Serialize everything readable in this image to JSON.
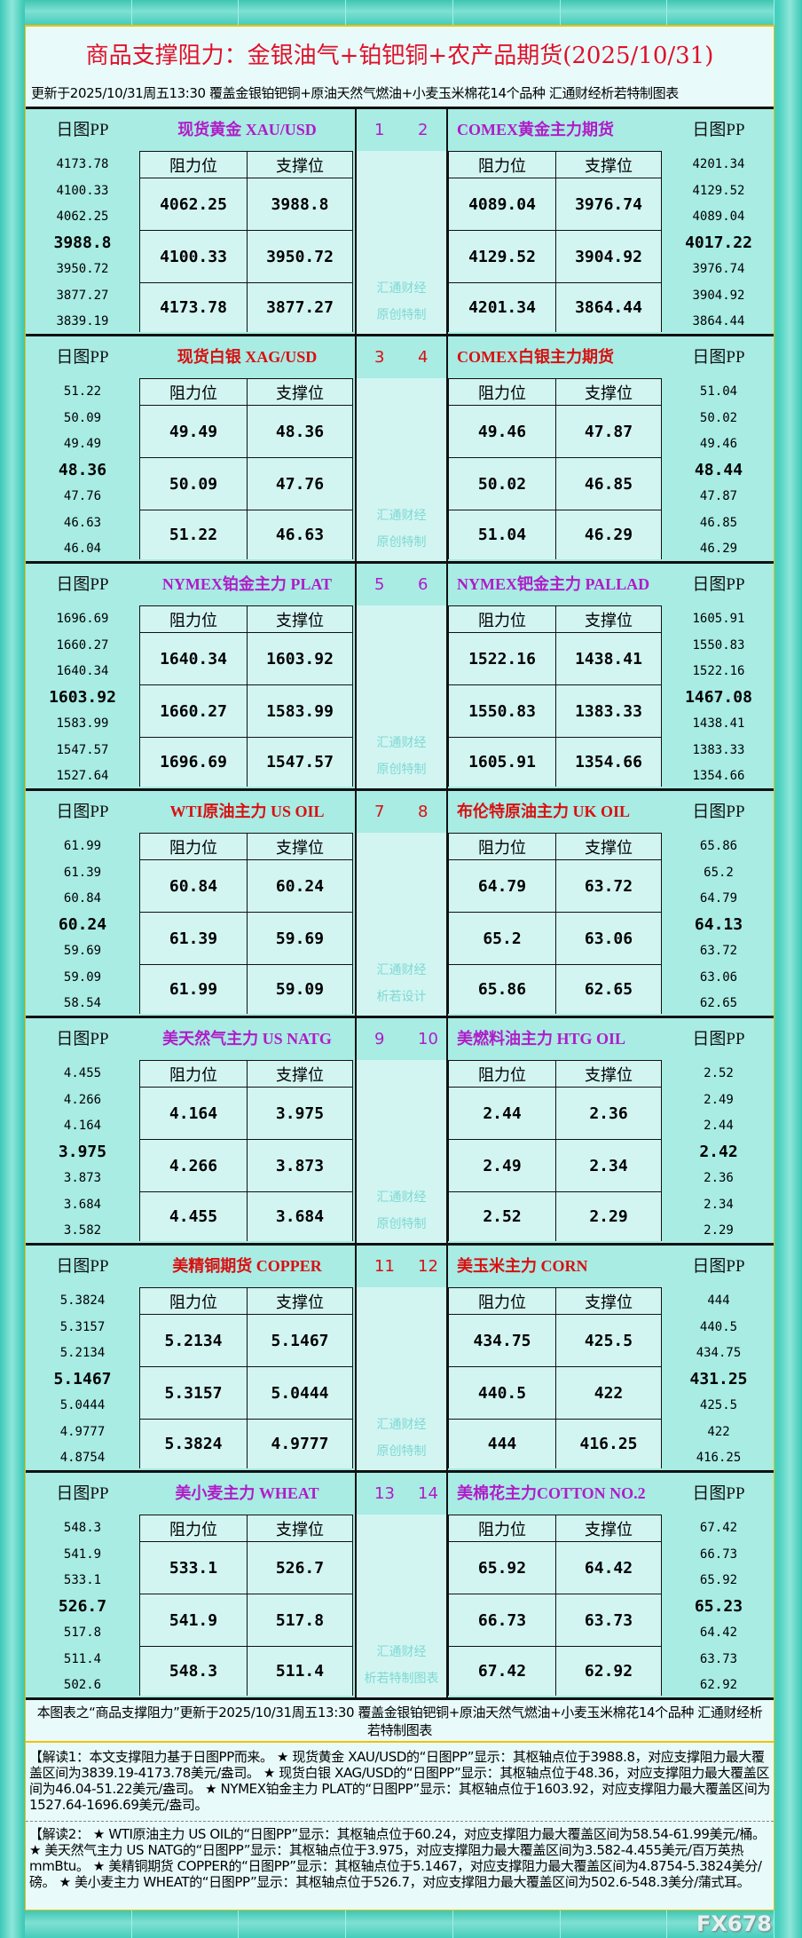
{
  "title": "商品支撑阻力：金银油气+铂钯铜+农产品期货(2025/10/31)",
  "subtitle": "更新于2025/10/31周五13:30  覆盖金银铂钯铜+原油天然气燃油+小麦玉米棉花14个品种  汇通财经析若特制图表",
  "labels": {
    "pp": "日图PP",
    "resistance": "阻力位",
    "support": "支撑位"
  },
  "colors": {
    "purple": "#b01cc8",
    "red": "#d81010",
    "title": "#e0102a"
  },
  "blocks": [
    {
      "nums": [
        "1",
        "2"
      ],
      "color": "purple",
      "wm": [
        "汇通财经",
        "原创特制"
      ],
      "left": {
        "name": "现货黄金 XAU/USD",
        "levels": [
          "4173.78",
          "4100.33",
          "4062.25",
          "3988.8",
          "3950.72",
          "3877.27",
          "3839.19"
        ],
        "res": [
          "4062.25",
          "4100.33",
          "4173.78"
        ],
        "sup": [
          "3988.8",
          "3950.72",
          "3877.27"
        ]
      },
      "right": {
        "name": "COMEX黄金主力期货",
        "levels": [
          "4201.34",
          "4129.52",
          "4089.04",
          "4017.22",
          "3976.74",
          "3904.92",
          "3864.44"
        ],
        "res": [
          "4089.04",
          "4129.52",
          "4201.34"
        ],
        "sup": [
          "3976.74",
          "3904.92",
          "3864.44"
        ]
      }
    },
    {
      "nums": [
        "3",
        "4"
      ],
      "color": "red",
      "wm": [
        "汇通财经",
        "原创特制"
      ],
      "left": {
        "name": "现货白银 XAG/USD",
        "levels": [
          "51.22",
          "50.09",
          "49.49",
          "48.36",
          "47.76",
          "46.63",
          "46.04"
        ],
        "res": [
          "49.49",
          "50.09",
          "51.22"
        ],
        "sup": [
          "48.36",
          "47.76",
          "46.63"
        ]
      },
      "right": {
        "name": "COMEX白银主力期货",
        "levels": [
          "51.04",
          "50.02",
          "49.46",
          "48.44",
          "47.87",
          "46.85",
          "46.29"
        ],
        "res": [
          "49.46",
          "50.02",
          "51.04"
        ],
        "sup": [
          "47.87",
          "46.85",
          "46.29"
        ]
      }
    },
    {
      "nums": [
        "5",
        "6"
      ],
      "color": "purple",
      "wm": [
        "汇通财经",
        "原创特制"
      ],
      "left": {
        "name": "NYMEX铂金主力 PLAT",
        "levels": [
          "1696.69",
          "1660.27",
          "1640.34",
          "1603.92",
          "1583.99",
          "1547.57",
          "1527.64"
        ],
        "res": [
          "1640.34",
          "1660.27",
          "1696.69"
        ],
        "sup": [
          "1603.92",
          "1583.99",
          "1547.57"
        ]
      },
      "right": {
        "name": "NYMEX钯金主力 PALLAD",
        "levels": [
          "1605.91",
          "1550.83",
          "1522.16",
          "1467.08",
          "1438.41",
          "1383.33",
          "1354.66"
        ],
        "res": [
          "1522.16",
          "1550.83",
          "1605.91"
        ],
        "sup": [
          "1438.41",
          "1383.33",
          "1354.66"
        ]
      }
    },
    {
      "nums": [
        "7",
        "8"
      ],
      "color": "red",
      "wm": [
        "汇通财经",
        "析若设计"
      ],
      "left": {
        "name": "WTI原油主力 US OIL",
        "levels": [
          "61.99",
          "61.39",
          "60.84",
          "60.24",
          "59.69",
          "59.09",
          "58.54"
        ],
        "res": [
          "60.84",
          "61.39",
          "61.99"
        ],
        "sup": [
          "60.24",
          "59.69",
          "59.09"
        ]
      },
      "right": {
        "name": "布伦特原油主力 UK OIL",
        "levels": [
          "65.86",
          "65.2",
          "64.79",
          "64.13",
          "63.72",
          "63.06",
          "62.65"
        ],
        "res": [
          "64.79",
          "65.2",
          "65.86"
        ],
        "sup": [
          "63.72",
          "63.06",
          "62.65"
        ]
      }
    },
    {
      "nums": [
        "9",
        "10"
      ],
      "color": "purple",
      "wm": [
        "汇通财经",
        "原创特制"
      ],
      "left": {
        "name": "美天然气主力 US NATG",
        "levels": [
          "4.455",
          "4.266",
          "4.164",
          "3.975",
          "3.873",
          "3.684",
          "3.582"
        ],
        "res": [
          "4.164",
          "4.266",
          "4.455"
        ],
        "sup": [
          "3.975",
          "3.873",
          "3.684"
        ]
      },
      "right": {
        "name": "美燃料油主力 HTG OIL",
        "levels": [
          "2.52",
          "2.49",
          "2.44",
          "2.42",
          "2.36",
          "2.34",
          "2.29"
        ],
        "res": [
          "2.44",
          "2.49",
          "2.52"
        ],
        "sup": [
          "2.36",
          "2.34",
          "2.29"
        ]
      }
    },
    {
      "nums": [
        "11",
        "12"
      ],
      "color": "red",
      "wm": [
        "汇通财经",
        "原创特制"
      ],
      "left": {
        "name": "美精铜期货 COPPER",
        "levels": [
          "5.3824",
          "5.3157",
          "5.2134",
          "5.1467",
          "5.0444",
          "4.9777",
          "4.8754"
        ],
        "res": [
          "5.2134",
          "5.3157",
          "5.3824"
        ],
        "sup": [
          "5.1467",
          "5.0444",
          "4.9777"
        ]
      },
      "right": {
        "name": "美玉米主力 CORN",
        "levels": [
          "444",
          "440.5",
          "434.75",
          "431.25",
          "425.5",
          "422",
          "416.25"
        ],
        "res": [
          "434.75",
          "440.5",
          "444"
        ],
        "sup": [
          "425.5",
          "422",
          "416.25"
        ]
      }
    },
    {
      "nums": [
        "13",
        "14"
      ],
      "color": "purple",
      "wm": [
        "汇通财经",
        "析若特制图表"
      ],
      "left": {
        "name": "美小麦主力 WHEAT",
        "levels": [
          "548.3",
          "541.9",
          "533.1",
          "526.7",
          "517.8",
          "511.4",
          "502.6"
        ],
        "res": [
          "533.1",
          "541.9",
          "548.3"
        ],
        "sup": [
          "526.7",
          "517.8",
          "511.4"
        ]
      },
      "right": {
        "name": "美棉花主力COTTON NO.2",
        "levels": [
          "67.42",
          "66.73",
          "65.92",
          "65.23",
          "64.42",
          "63.73",
          "62.92"
        ],
        "res": [
          "65.92",
          "66.73",
          "67.42"
        ],
        "sup": [
          "64.42",
          "63.73",
          "62.92"
        ]
      }
    }
  ],
  "footer": {
    "summary": "本图表之“商品支撑阻力”更新于2025/10/31周五13:30 覆盖金银铂钯铜+原油天然气燃油+小麦玉米棉花14个品种 汇通财经析若特制图表",
    "note1": "【解读1：本文支撑阻力基于日图PP而来。 ★ 现货黄金 XAU/USD的“日图PP”显示：其枢轴点位于3988.8，对应支撑阻力最大覆盖区间为3839.19-4173.78美元/盎司。 ★ 现货白银 XAG/USD的“日图PP”显示：其枢轴点位于48.36，对应支撑阻力最大覆盖区间为46.04-51.22美元/盎司。 ★ NYMEX铂金主力 PLAT的“日图PP”显示：其枢轴点位于1603.92，对应支撑阻力最大覆盖区间为1527.64-1696.69美元/盎司。",
    "note2": "【解读2： ★ WTI原油主力 US OIL的“日图PP”显示：其枢轴点位于60.24，对应支撑阻力最大覆盖区间为58.54-61.99美元/桶。 ★ 美天然气主力 US NATG的“日图PP”显示：其枢轴点位于3.975，对应支撑阻力最大覆盖区间为3.582-4.455美元/百万英热mmBtu。 ★ 美精铜期货 COPPER的“日图PP”显示：其枢轴点位于5.1467，对应支撑阻力最大覆盖区间为4.8754-5.3824美分/磅。 ★ 美小麦主力 WHEAT的“日图PP”显示：其枢轴点位于526.7，对应支撑阻力最大覆盖区间为502.6-548.3美分/蒲式耳。",
    "logo": "FX678"
  }
}
